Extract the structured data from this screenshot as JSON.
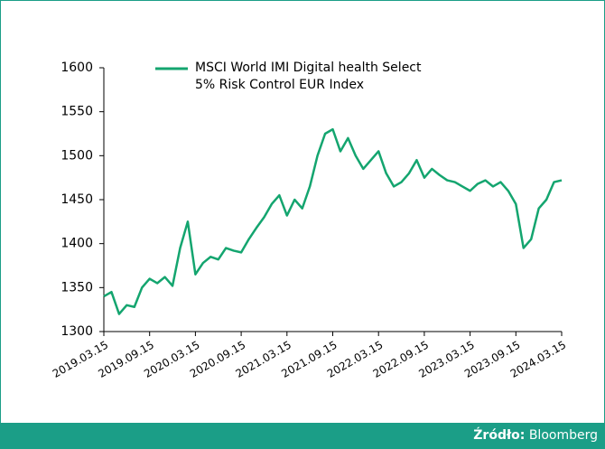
{
  "chart_data": {
    "type": "line",
    "x": [
      "2019.03.15",
      "2019.04.15",
      "2019.05.15",
      "2019.06.15",
      "2019.07.15",
      "2019.08.15",
      "2019.09.15",
      "2019.10.15",
      "2019.11.15",
      "2019.12.15",
      "2020.01.15",
      "2020.02.15",
      "2020.03.15",
      "2020.04.15",
      "2020.05.15",
      "2020.06.15",
      "2020.07.15",
      "2020.08.15",
      "2020.09.15",
      "2020.10.15",
      "2020.11.15",
      "2020.12.15",
      "2021.01.15",
      "2021.02.15",
      "2021.03.15",
      "2021.04.15",
      "2021.05.15",
      "2021.06.15",
      "2021.07.15",
      "2021.08.15",
      "2021.09.15",
      "2021.10.15",
      "2021.11.15",
      "2021.12.15",
      "2022.01.15",
      "2022.02.15",
      "2022.03.15",
      "2022.04.15",
      "2022.05.15",
      "2022.06.15",
      "2022.07.15",
      "2022.08.15",
      "2022.09.15",
      "2022.10.15",
      "2022.11.15",
      "2022.12.15",
      "2023.01.15",
      "2023.02.15",
      "2023.03.15",
      "2023.04.15",
      "2023.05.15",
      "2023.06.15",
      "2023.07.15",
      "2023.08.15",
      "2023.09.15",
      "2023.10.15",
      "2023.11.15",
      "2023.12.15",
      "2024.01.15",
      "2024.02.15",
      "2024.03.15"
    ],
    "series": [
      {
        "name": "MSCI World IMI Digital health Select 5% Risk Control EUR Index",
        "color": "#14a56f",
        "values": [
          1340,
          1345,
          1320,
          1330,
          1328,
          1350,
          1360,
          1355,
          1362,
          1352,
          1395,
          1425,
          1365,
          1378,
          1385,
          1382,
          1395,
          1392,
          1390,
          1405,
          1418,
          1430,
          1445,
          1455,
          1432,
          1450,
          1440,
          1465,
          1500,
          1525,
          1530,
          1505,
          1520,
          1500,
          1485,
          1495,
          1505,
          1480,
          1465,
          1470,
          1480,
          1495,
          1475,
          1485,
          1478,
          1472,
          1470,
          1465,
          1460,
          1468,
          1472,
          1465,
          1470,
          1460,
          1445,
          1395,
          1405,
          1440,
          1450,
          1470,
          1472
        ]
      }
    ],
    "xticks": [
      "2019.03.15",
      "2019.09.15",
      "2020.03.15",
      "2020.09.15",
      "2021.03.15",
      "2021.09.15",
      "2022.03.15",
      "2022.09.15",
      "2023.03.15",
      "2023.09.15",
      "2024.03.15"
    ],
    "ylim": [
      1300,
      1600
    ],
    "yticks": [
      1300,
      1350,
      1400,
      1450,
      1500,
      1550,
      1600
    ],
    "grid": false
  },
  "footer": {
    "source_label": "Źródło:",
    "source": "Bloomberg"
  }
}
